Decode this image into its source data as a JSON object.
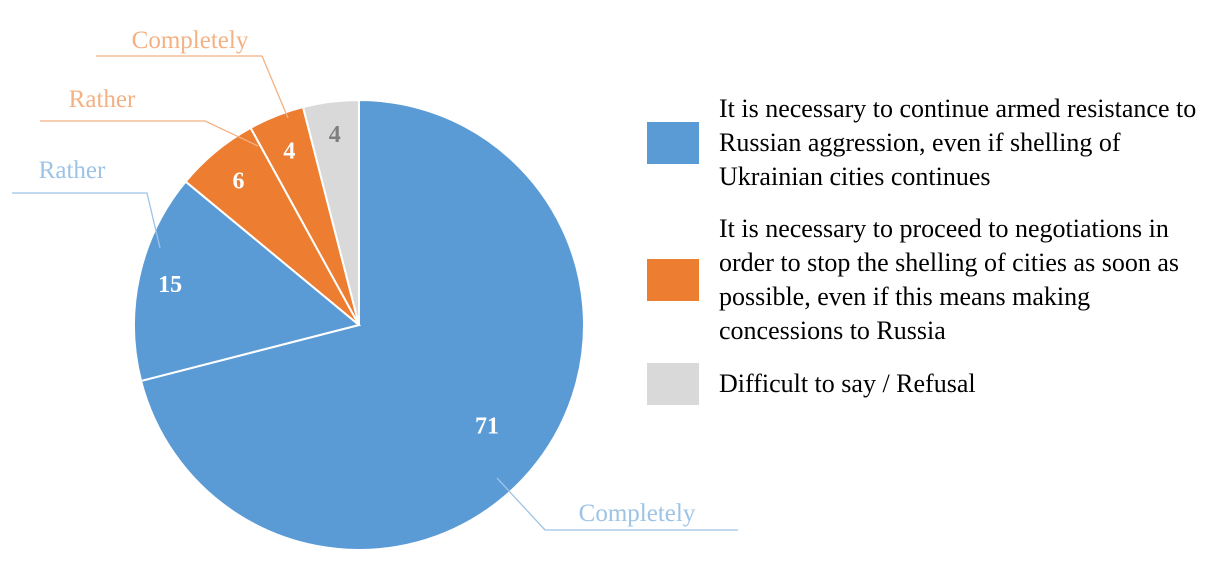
{
  "chart_data": {
    "type": "pie",
    "title": "",
    "slices": [
      {
        "name": "Completely",
        "group": "continue",
        "value": 71,
        "color": "#5b9bd5",
        "label_color": "#ffffff",
        "callout_color": "#9dc3e6"
      },
      {
        "name": "Rather",
        "group": "continue",
        "value": 15,
        "color": "#5b9bd5",
        "label_color": "#ffffff",
        "callout_color": "#9dc3e6"
      },
      {
        "name": "Rather",
        "group": "negotiate",
        "value": 6,
        "color": "#ed7d31",
        "label_color": "#ffffff",
        "callout_color": "#f4b183"
      },
      {
        "name": "Completely",
        "group": "negotiate",
        "value": 4,
        "color": "#ed7d31",
        "label_color": "#ffffff",
        "callout_color": "#f4b183"
      },
      {
        "name": "",
        "group": "difficult",
        "value": 4,
        "color": "#d9d9d9",
        "label_color": "#7f7f7f",
        "callout_color": ""
      }
    ],
    "slice_order": "clockwise from top",
    "legend_position": "right"
  },
  "legend": {
    "items": [
      {
        "label": "It is necessary to continue armed resistance to Russian aggression, even if shelling of Ukrainian cities continues",
        "color": "#5b9bd5"
      },
      {
        "label": "It is necessary to proceed to negotiations in order to stop the shelling of cities as soon as possible, even if this means making concessions to Russia",
        "color": "#ed7d31"
      },
      {
        "label": "Difficult to say / Refusal",
        "color": "#d9d9d9"
      }
    ]
  }
}
